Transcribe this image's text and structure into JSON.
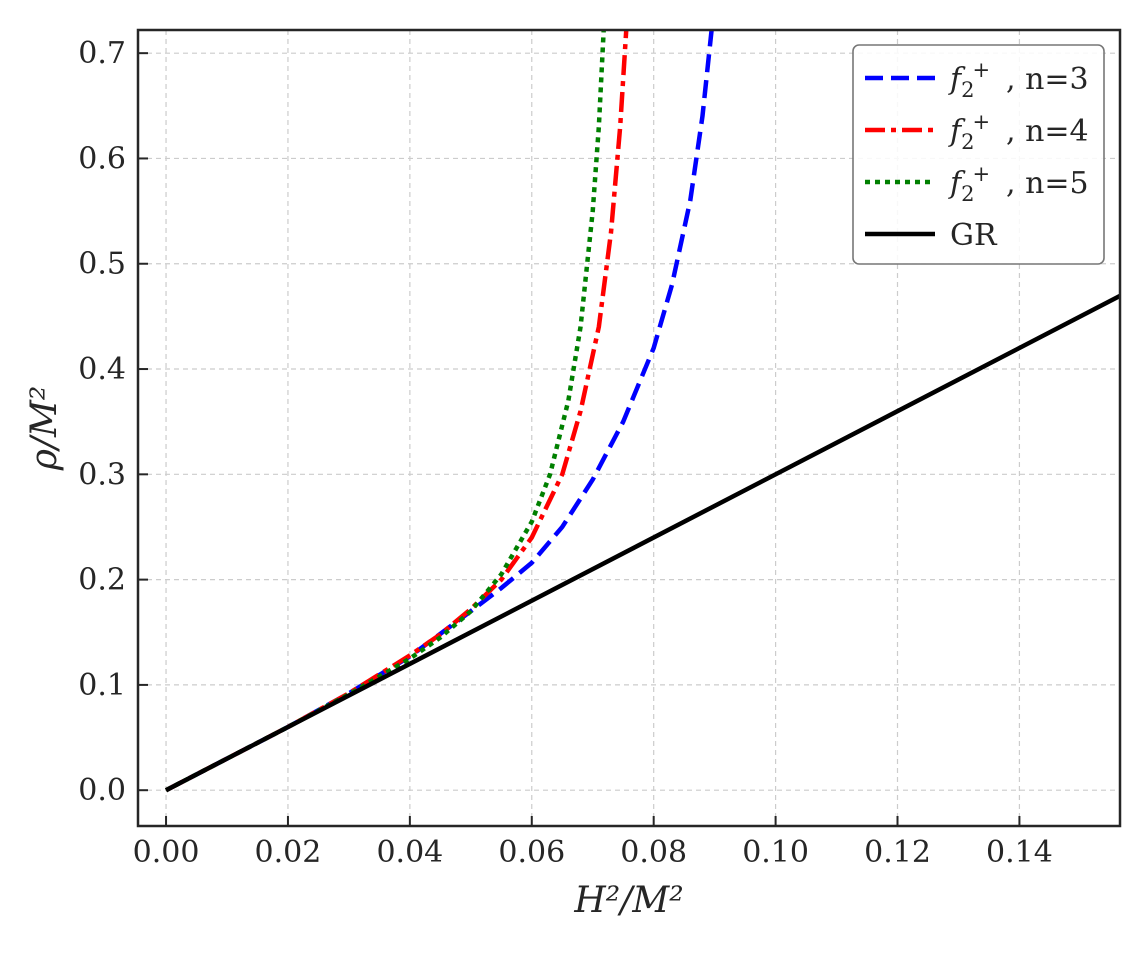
{
  "chart_data": {
    "type": "line",
    "xlabel": "H²/M²",
    "ylabel": "ρ/M²",
    "xlim": [
      -0.0046,
      0.1565
    ],
    "ylim": [
      -0.034,
      0.722
    ],
    "xticks": [
      0.0,
      0.02,
      0.04,
      0.06,
      0.08,
      0.1,
      0.12,
      0.14
    ],
    "xtick_labels": [
      "0.00",
      "0.02",
      "0.04",
      "0.06",
      "0.08",
      "0.10",
      "0.12",
      "0.14"
    ],
    "yticks": [
      0.0,
      0.1,
      0.2,
      0.3,
      0.4,
      0.5,
      0.6,
      0.7
    ],
    "ytick_labels": [
      "0.0",
      "0.1",
      "0.2",
      "0.3",
      "0.4",
      "0.5",
      "0.6",
      "0.7"
    ],
    "grid": true,
    "legend_position": "top-right",
    "series": [
      {
        "name": "f₂⁺, n=3",
        "legend_label": ", n=3",
        "color": "#0000ff",
        "style": "dashed",
        "x": [
          0.0,
          0.01,
          0.02,
          0.03,
          0.04,
          0.05,
          0.055,
          0.06,
          0.065,
          0.07,
          0.075,
          0.08,
          0.083,
          0.086,
          0.088,
          0.0895
        ],
        "y": [
          0.0,
          0.03,
          0.06,
          0.092,
          0.127,
          0.17,
          0.192,
          0.216,
          0.25,
          0.295,
          0.35,
          0.42,
          0.48,
          0.56,
          0.64,
          0.722
        ]
      },
      {
        "name": "f₂⁺, n=4",
        "legend_label": ", n=4",
        "color": "#ff0000",
        "style": "dashdot",
        "x": [
          0.0,
          0.01,
          0.02,
          0.03,
          0.04,
          0.045,
          0.05,
          0.055,
          0.06,
          0.065,
          0.068,
          0.071,
          0.073,
          0.0745,
          0.0755
        ],
        "y": [
          0.0,
          0.03,
          0.06,
          0.092,
          0.128,
          0.148,
          0.172,
          0.2,
          0.24,
          0.3,
          0.36,
          0.44,
          0.53,
          0.63,
          0.722
        ]
      },
      {
        "name": "f₂⁺, n=5",
        "legend_label": ", n=5",
        "color": "#008000",
        "style": "dotted",
        "x": [
          0.0,
          0.01,
          0.02,
          0.03,
          0.04,
          0.045,
          0.05,
          0.055,
          0.06,
          0.063,
          0.066,
          0.068,
          0.07,
          0.071,
          0.0718
        ],
        "y": [
          0.0,
          0.03,
          0.06,
          0.091,
          0.125,
          0.145,
          0.17,
          0.205,
          0.255,
          0.3,
          0.37,
          0.44,
          0.55,
          0.63,
          0.722
        ]
      },
      {
        "name": "GR",
        "legend_label": "GR",
        "color": "#000000",
        "style": "solid",
        "x": [
          0.0,
          0.1565
        ],
        "y": [
          0.0,
          0.4695
        ]
      }
    ]
  }
}
